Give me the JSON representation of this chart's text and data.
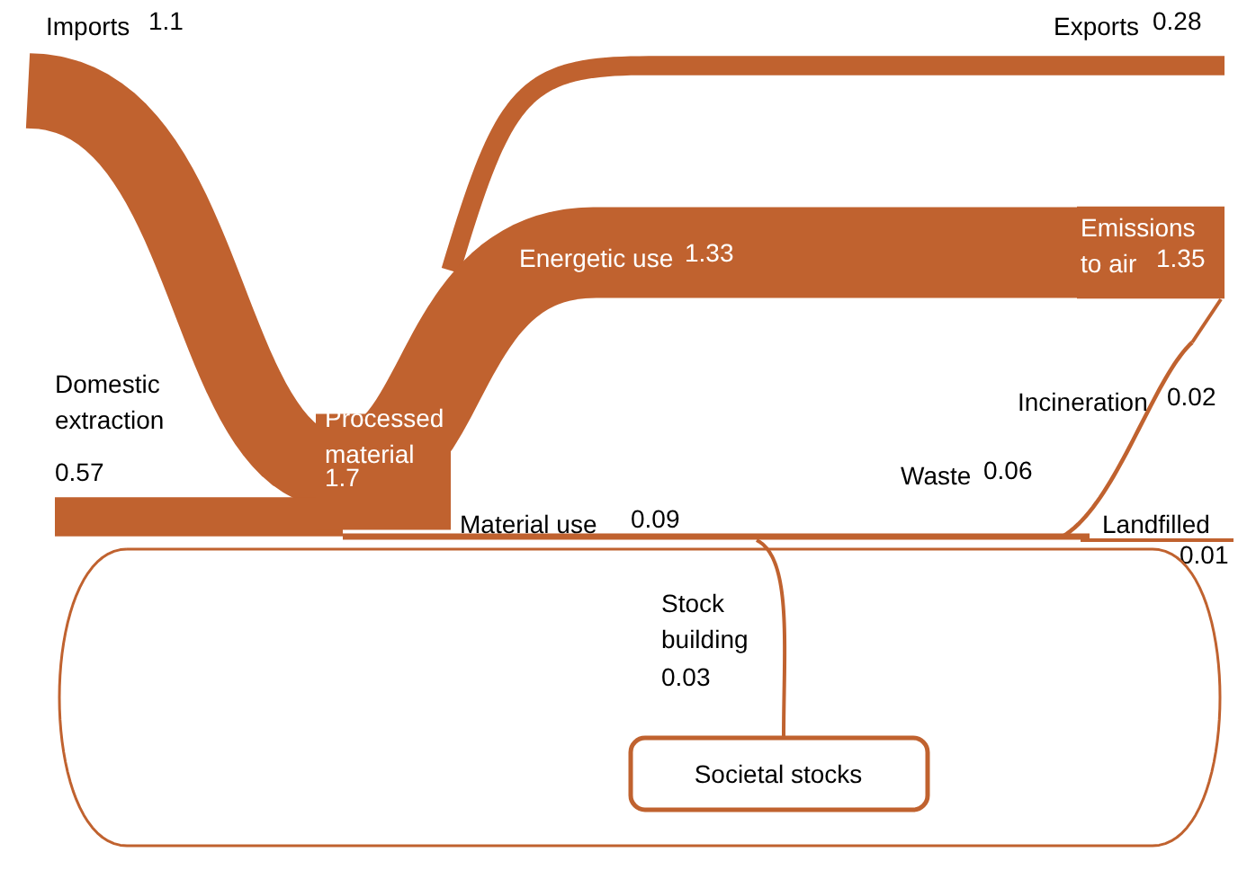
{
  "chart_data": {
    "type": "other",
    "color": "#c0622f",
    "data_labels": true,
    "categories": [
      "Imports",
      "Exports",
      "Energetic use",
      "Emissions to air",
      "Domestic extraction",
      "Processed material",
      "Material use",
      "Waste",
      "Incineration",
      "Landfilled",
      "Stock building"
    ],
    "values": [
      1.1,
      0.28,
      1.33,
      1.35,
      0.57,
      1.7,
      0.09,
      0.06,
      0.02,
      0.01,
      0.03
    ],
    "annotations": [
      "Societal stocks"
    ]
  }
}
